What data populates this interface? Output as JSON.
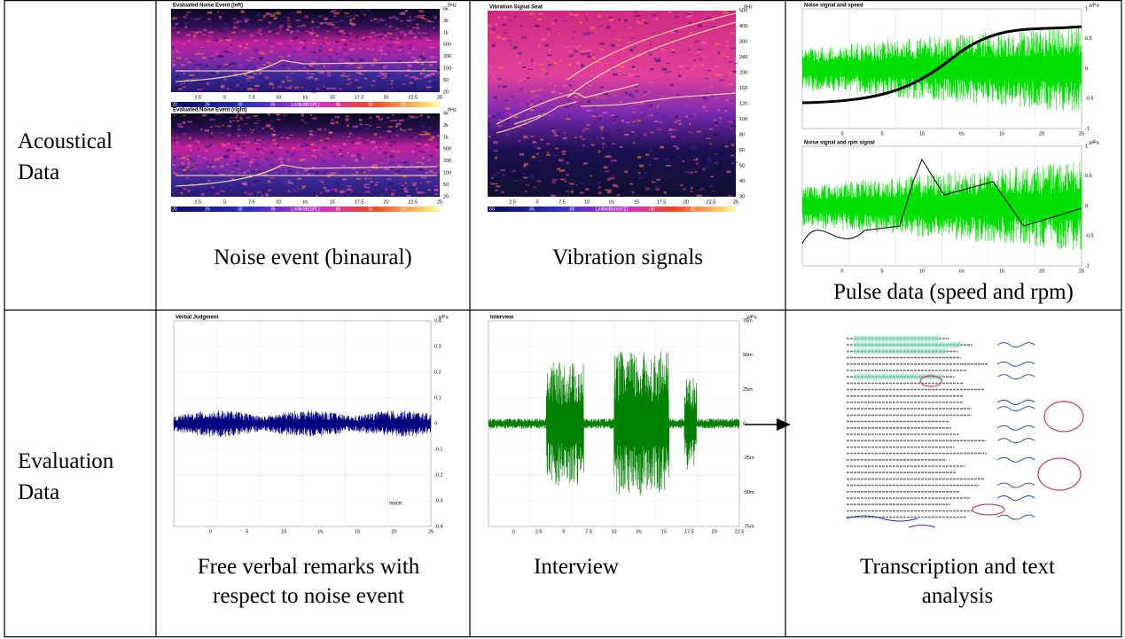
{
  "table": {
    "rows": [
      {
        "label": "Acoustical Data",
        "cells": [
          {
            "caption": "Noise event (binaural)",
            "panels": [
              {
                "title": "Evaluated Noise Event (left)",
                "unit": "f/Hz",
                "y_ticks": [
                  "5k",
                  "2k",
                  "1k",
                  "500",
                  "200",
                  "100",
                  "50",
                  "20"
                ],
                "x_ticks": [
                  "2.5",
                  "5",
                  "7.5",
                  "10",
                  "t/s",
                  "15",
                  "17.5",
                  "20",
                  "22.5",
                  "25"
                ],
                "scale": [
                  "20",
                  "25",
                  "30",
                  "35",
                  "Lmtlk/dB(SPL)",
                  "45",
                  "50",
                  "55",
                  "60"
                ]
              },
              {
                "title": "Evaluated Noise Event (right)",
                "unit": "f/Hz",
                "y_ticks": [
                  "5k",
                  "2k",
                  "1k",
                  "500",
                  "200",
                  "100",
                  "50",
                  "20"
                ],
                "x_ticks": [
                  "2.5",
                  "5",
                  "7.5",
                  "10",
                  "t/s",
                  "15",
                  "17.5",
                  "20",
                  "22.5",
                  "25"
                ],
                "scale": [
                  "20",
                  "25",
                  "30",
                  "35",
                  "Lmtlk/dB(SPL)",
                  "45",
                  "50",
                  "55",
                  "60"
                ]
              }
            ]
          },
          {
            "caption": "Vibration signals",
            "panels": [
              {
                "title": "Vibration Signal Seat",
                "unit": "f/Hz",
                "y_ticks": [
                  "500",
                  "400",
                  "300",
                  "240",
                  "200",
                  "160",
                  "120",
                  "100",
                  "80",
                  "60",
                  "50",
                  "40",
                  "30"
                ],
                "x_ticks": [
                  "2.5",
                  "5",
                  "7.5",
                  "10",
                  "t/s",
                  "15",
                  "17.5",
                  "20",
                  "22.5",
                  "25"
                ],
                "scale": [
                  "-60",
                  "-55",
                  "-50",
                  "Lmtlk/dB(m/s^2)",
                  "-40",
                  "-35",
                  "-30"
                ]
              }
            ]
          },
          {
            "caption": "Pulse data (speed and rpm)",
            "panels": [
              {
                "title": "Noise signal and speed",
                "unit": "p/Pa",
                "y_ticks": [
                  "1",
                  "0.5",
                  "0",
                  "-0.5",
                  "-1"
                ],
                "x_ticks": [
                  "0",
                  "5",
                  "10",
                  "t/s",
                  "15",
                  "20",
                  "25"
                ]
              },
              {
                "title": "Noise signal and rpm signal",
                "unit": "p/Pa",
                "y_ticks": [
                  "1",
                  "0.5",
                  "0",
                  "-0.5",
                  "-1"
                ],
                "x_ticks": [
                  "0",
                  "5",
                  "10",
                  "t/s",
                  "15",
                  "20",
                  "25"
                ]
              }
            ]
          }
        ]
      },
      {
        "label": "Evaluation Data",
        "cells": [
          {
            "caption": "Free verbal remarks with respect to noise event",
            "panels": [
              {
                "title": "Verbal Judgment",
                "unit": "p/Pa",
                "note": "voice",
                "y_ticks": [
                  "0.4",
                  "0.3",
                  "0.2",
                  "0.1",
                  "0",
                  "-0.1",
                  "-0.2",
                  "-0.3",
                  "-0.4"
                ],
                "x_ticks": [
                  "0",
                  "5",
                  "10",
                  "t/s",
                  "15",
                  "20",
                  "25"
                ]
              }
            ]
          },
          {
            "caption": "Interview",
            "panels": [
              {
                "title": "Interview",
                "unit": "p/Pa",
                "y_ticks": [
                  "75m",
                  "50m",
                  "25m",
                  "0",
                  "-25m",
                  "-50m",
                  "-75m"
                ],
                "x_ticks": [
                  "0",
                  "2.5",
                  "5",
                  "7.5",
                  "10",
                  "t/s",
                  "15",
                  "17.5",
                  "20",
                  "22.5"
                ]
              }
            ]
          },
          {
            "caption": "Transcription and text analysis",
            "panels": []
          }
        ]
      }
    ]
  }
}
